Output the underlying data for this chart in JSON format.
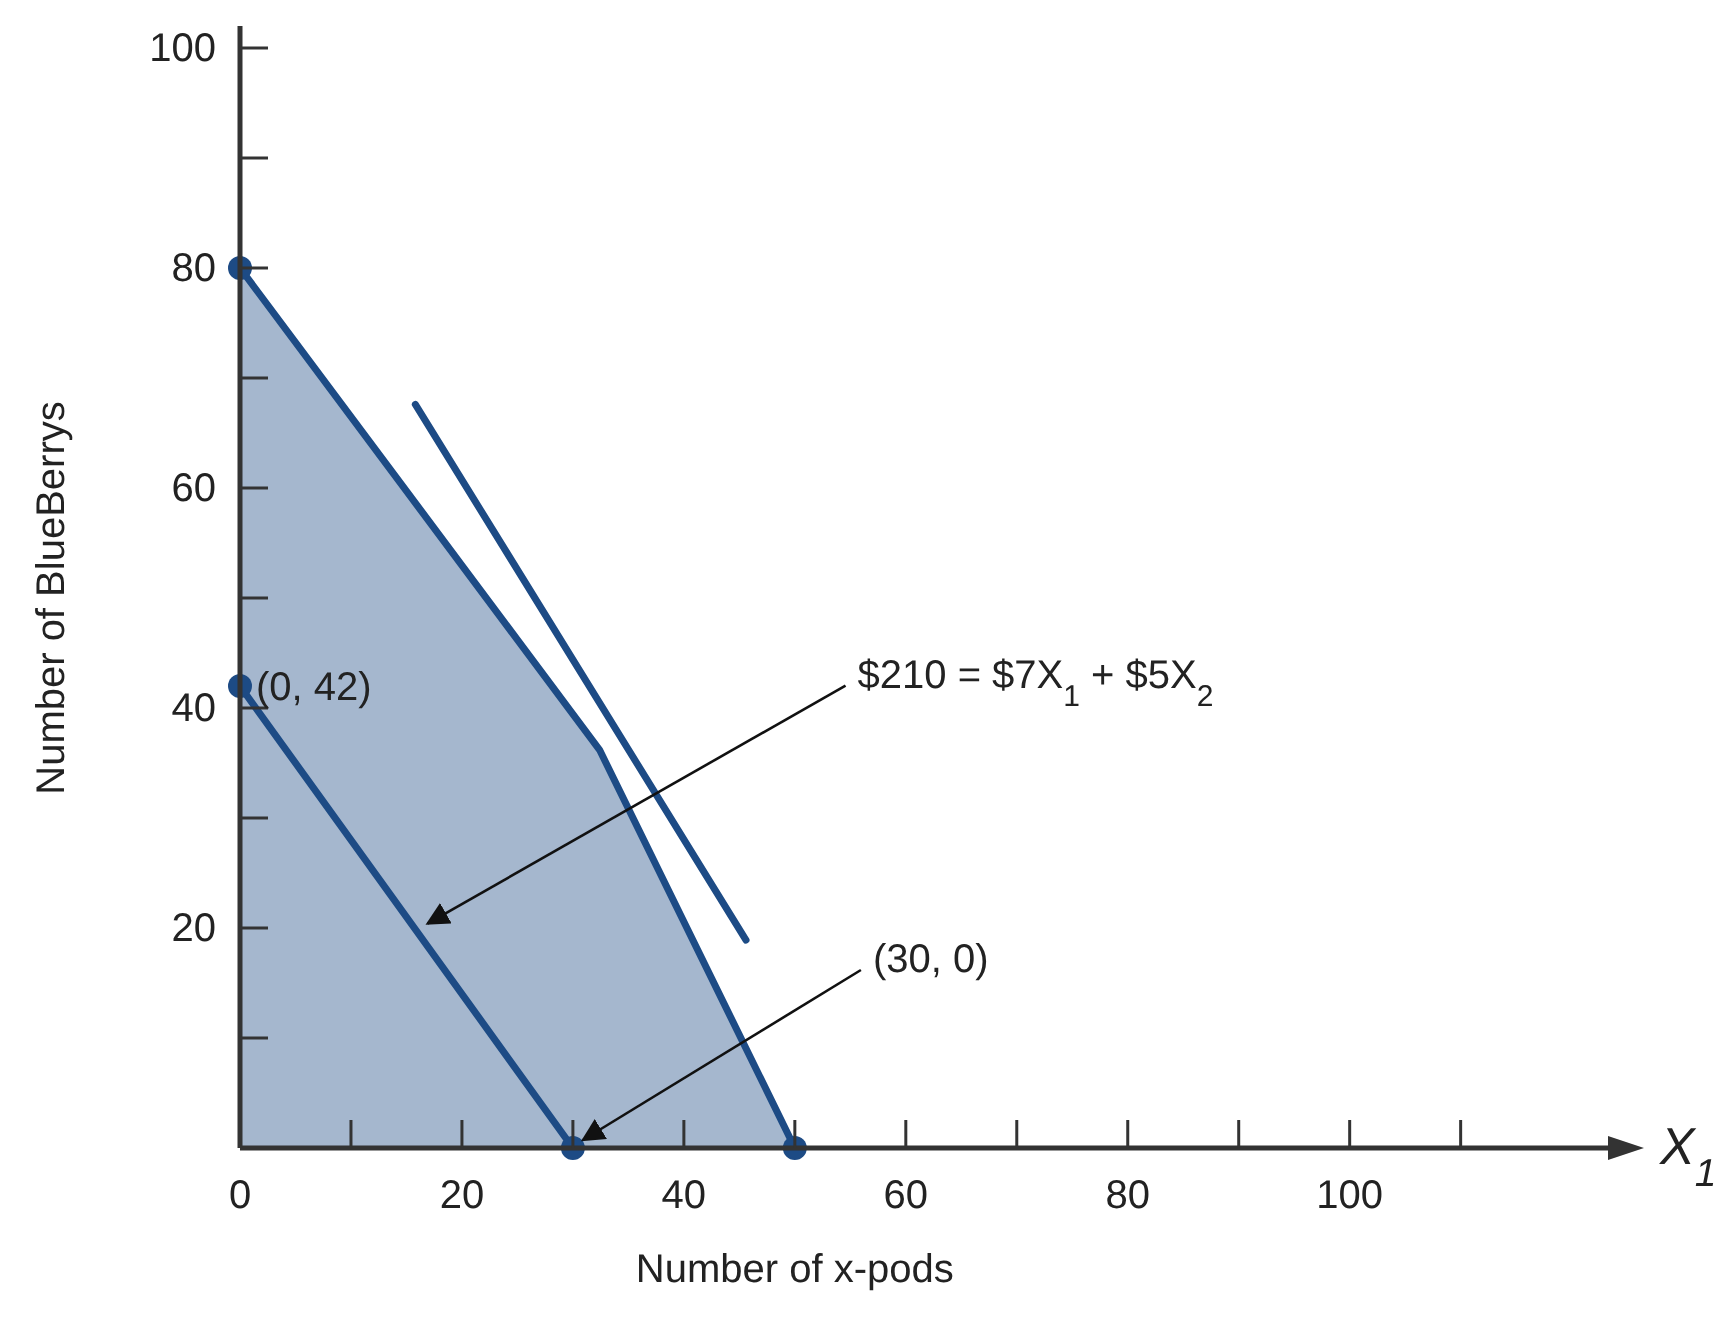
{
  "chart_data": {
    "type": "area",
    "xlabel": "Number of x-pods",
    "ylabel": "Number of BlueBerrys",
    "xlim": [
      0,
      124
    ],
    "ylim": [
      0,
      102
    ],
    "xticks": [
      0,
      {
        "value": 10,
        "label": null
      },
      20,
      {
        "value": 30,
        "label": null
      },
      40,
      {
        "value": 50,
        "label": null
      },
      60,
      {
        "value": 70,
        "label": null
      },
      80,
      {
        "value": 90,
        "label": null
      },
      100,
      {
        "value": 110,
        "label": null
      }
    ],
    "yticks": [
      {
        "value": 10,
        "label": null
      },
      20,
      {
        "value": 30,
        "label": null
      },
      40,
      {
        "value": 50,
        "label": null
      },
      60,
      {
        "value": 70,
        "label": null
      },
      80,
      {
        "value": 90,
        "label": null
      },
      100
    ],
    "grid": false,
    "series": [
      {
        "color": "#1d4b85",
        "x": [
          0,
          32.4,
          50
        ],
        "values": [
          80,
          36.2,
          0
        ]
      },
      {
        "type": "line",
        "color": "#1d4b85",
        "x": [
          0,
          30
        ],
        "values": [
          42,
          0
        ]
      },
      {
        "type": "line",
        "color": "#1d4b85",
        "x": [
          15.8,
          45.6
        ],
        "values": [
          67.6,
          18.9
        ]
      },
      {
        "type": "scatter",
        "color": "#1d4b85",
        "marker": "circle",
        "x": [
          0,
          0,
          30,
          50
        ],
        "values": [
          80,
          42,
          0,
          0
        ]
      }
    ],
    "annotations": [
      {
        "text": "(0, 42)",
        "x": 0,
        "y": 42
      },
      {
        "text": "$210 = $7X$_{1}$ + $5X$_{2}$",
        "x": 16.9,
        "y": 20.4
      },
      {
        "text": "(30, 0)",
        "x": 30,
        "y": 0
      },
      "X$_{1}$"
    ]
  }
}
